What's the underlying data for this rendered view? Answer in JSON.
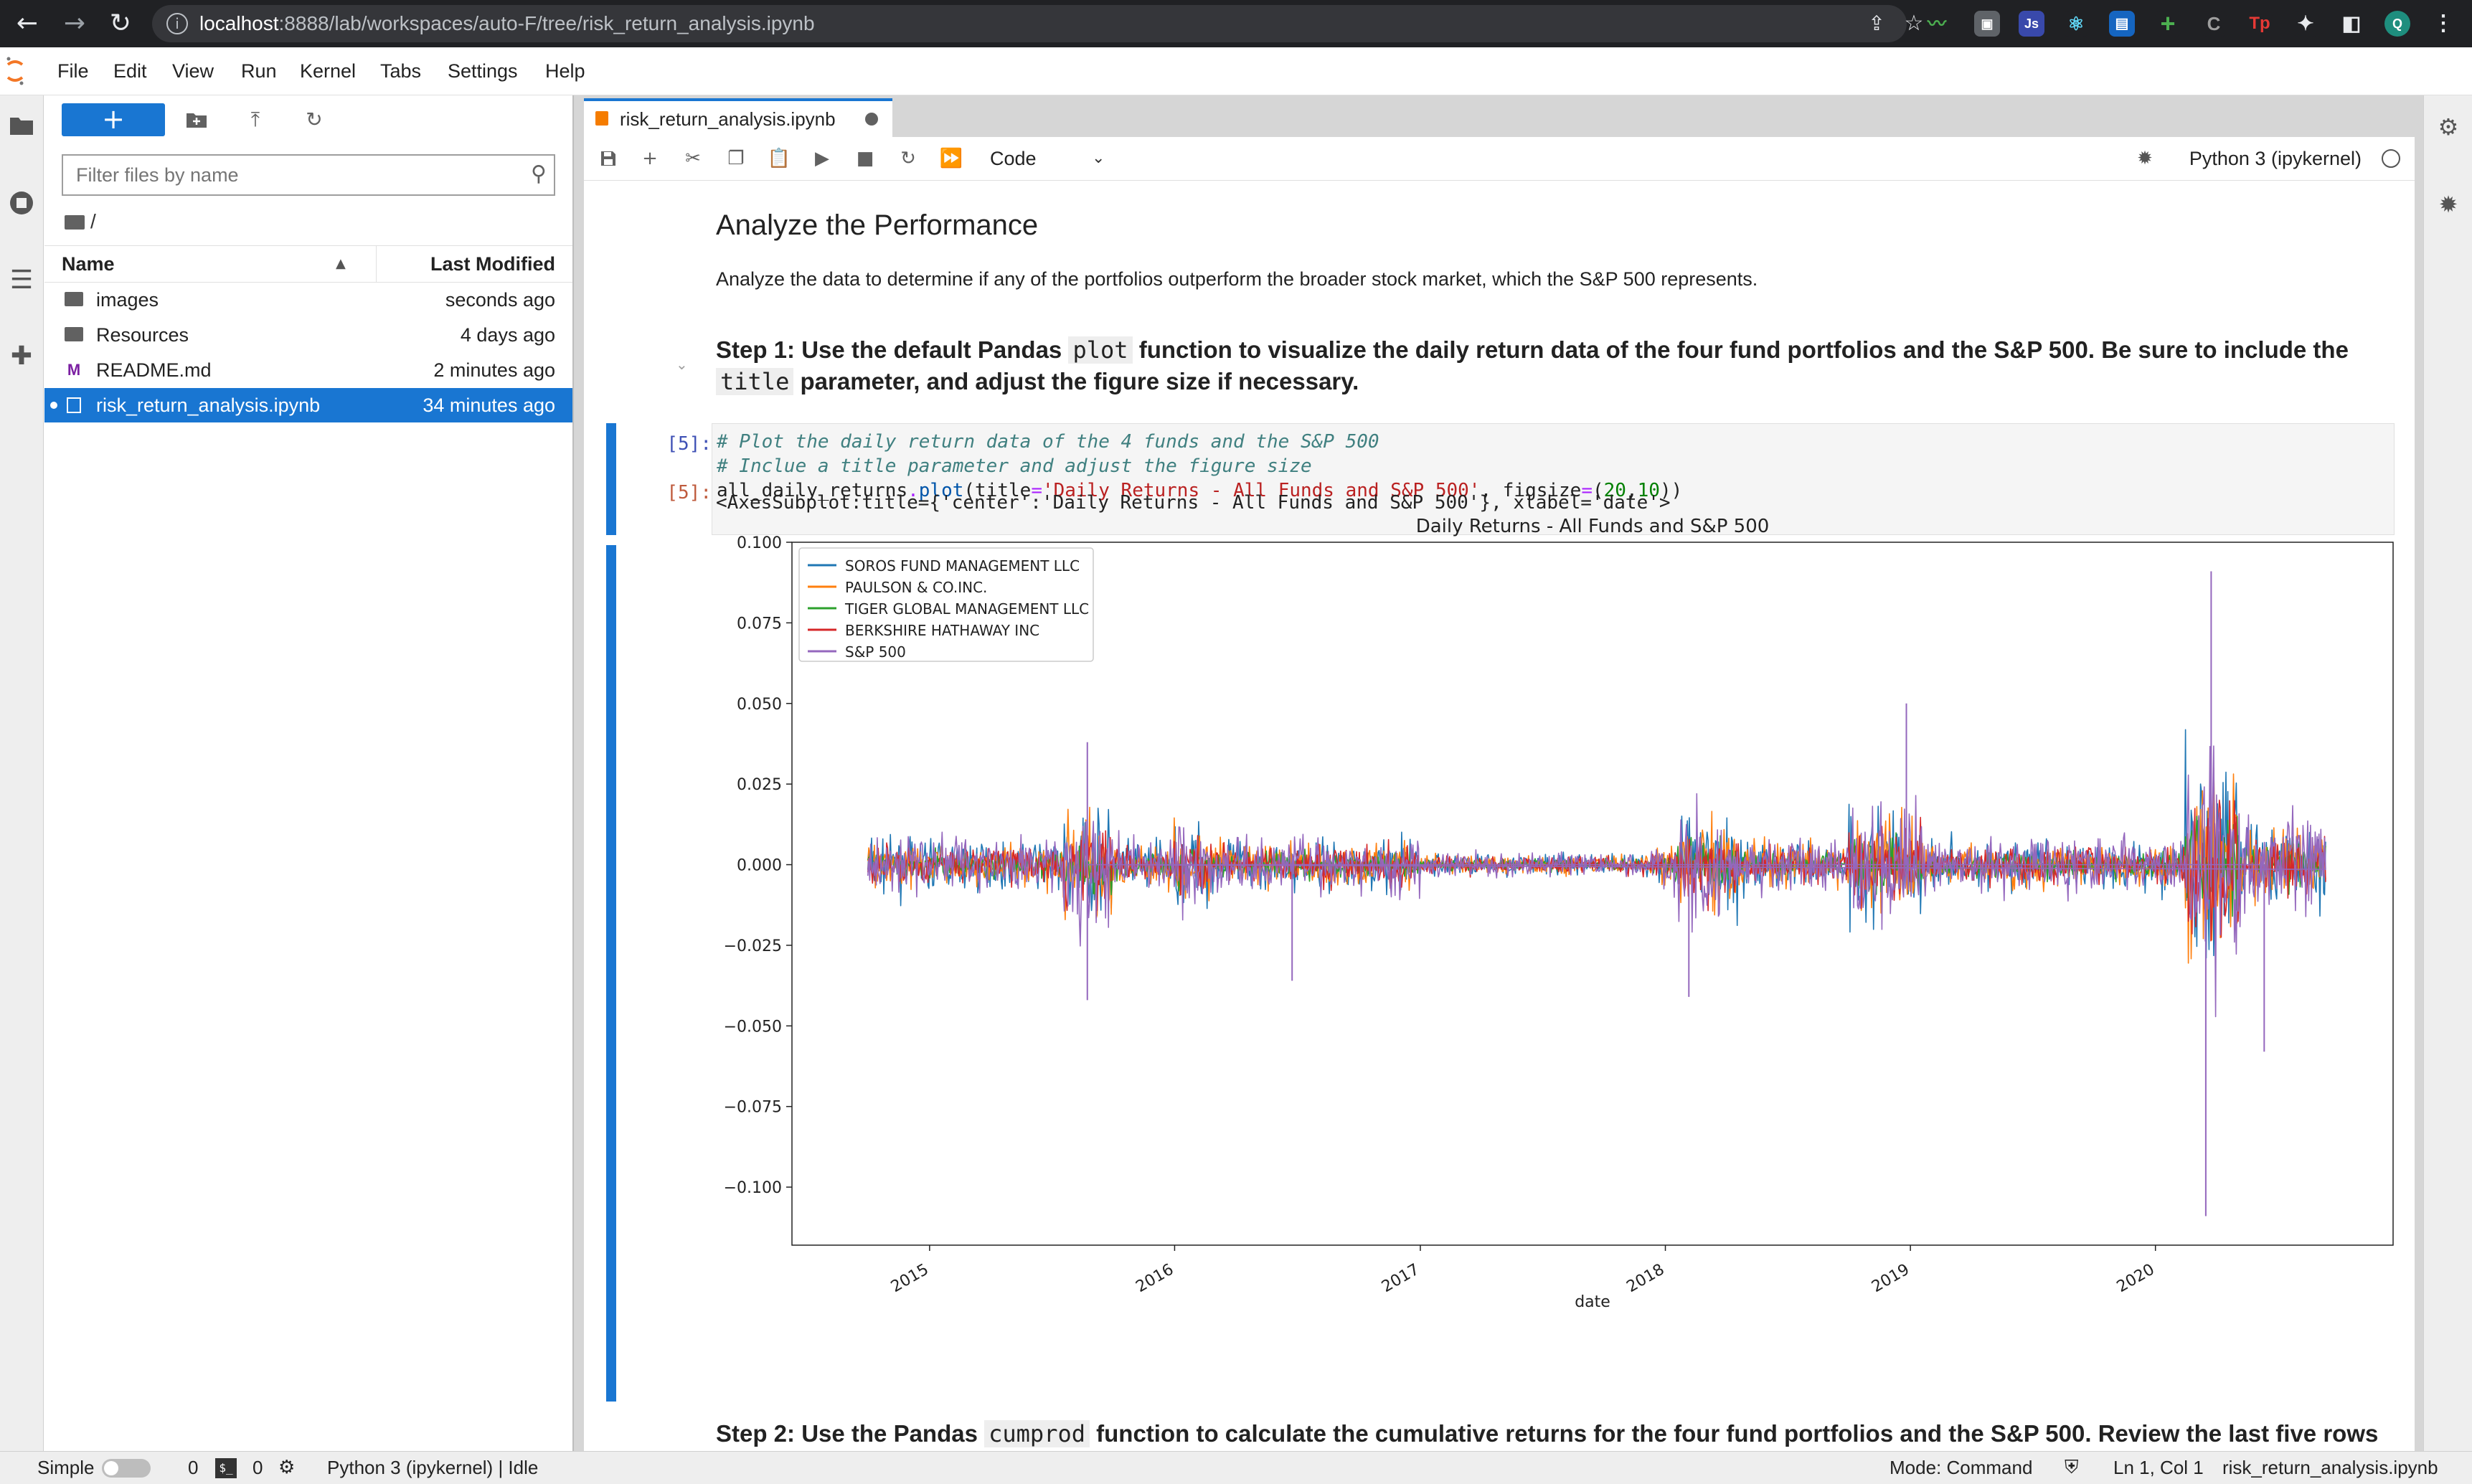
{
  "browser": {
    "url_host": "localhost",
    "url_path": ":8888/lab/workspaces/auto-F/tree/risk_return_analysis.ipynb",
    "ext_js": "Js",
    "ext_tp": "Tp",
    "profile_initial": "Q"
  },
  "menu": [
    "File",
    "Edit",
    "View",
    "Run",
    "Kernel",
    "Tabs",
    "Settings",
    "Help"
  ],
  "filebrowser": {
    "new_label": "+",
    "filter_placeholder": "Filter files by name",
    "breadcrumb": "/",
    "col_name": "Name",
    "col_modified": "Last Modified",
    "files": [
      {
        "name": "images",
        "modified": "seconds ago",
        "type": "folder"
      },
      {
        "name": "Resources",
        "modified": "4 days ago",
        "type": "folder"
      },
      {
        "name": "README.md",
        "modified": "2 minutes ago",
        "type": "markdown"
      },
      {
        "name": "risk_return_analysis.ipynb",
        "modified": "34 minutes ago",
        "type": "notebook",
        "selected": true
      }
    ]
  },
  "notebook": {
    "tab_label": "risk_return_analysis.ipynb",
    "cell_type": "Code",
    "kernel": "Python 3 (ipykernel)",
    "heading": "Analyze the Performance",
    "intro": "Analyze the data to determine if any of the portfolios outperform the broader stock market, which the S&P 500 represents.",
    "step1_a": "Step 1: Use the default Pandas ",
    "step1_code1": "plot",
    "step1_b": " function to visualize the daily return data of the four fund portfolios and the S&P 500. Be sure to include the ",
    "step1_code2": "title",
    "step1_c": " parameter, and adjust the figure size if necessary.",
    "prompt_in": "[5]:",
    "prompt_out": "[5]:",
    "code_line1": "# Plot the daily return data of the 4 funds and the S&P 500",
    "code_line2": "# Inclue a title parameter and adjust the figure size",
    "code_l3_a": "all_daily_returns",
    "code_l3_b": ".",
    "code_l3_c": "plot",
    "code_l3_d": "(title",
    "code_l3_e": "=",
    "code_l3_f": "'Daily Returns - All Funds and S&P 500'",
    "code_l3_g": ", figsize",
    "code_l3_h": "=",
    "code_l3_i": "(",
    "code_l3_j": "20",
    "code_l3_k": ",",
    "code_l3_l": "10",
    "code_l3_m": "))",
    "output_repr": "<AxesSubplot:title={'center':'Daily Returns - All Funds and S&P 500'}, xlabel='date'>",
    "step2_a": "Step 2: Use the Pandas ",
    "step2_code": "cumprod",
    "step2_b": " function to calculate the cumulative returns for the four fund portfolios and the S&P 500. Review the last five rows"
  },
  "chart_data": {
    "type": "line",
    "title": "Daily Returns - All Funds and S&P 500",
    "xlabel": "date",
    "ylabel": "",
    "x_range": [
      "2014-10-01",
      "2020-09-11"
    ],
    "ylim": [
      -0.118,
      0.1
    ],
    "yticks": [
      0.1,
      0.075,
      0.05,
      0.025,
      0.0,
      -0.025,
      -0.05,
      -0.075,
      -0.1
    ],
    "ytick_labels": [
      "0.100",
      "0.075",
      "0.050",
      "0.025",
      "0.000",
      "−0.025",
      "−0.050",
      "−0.075",
      "−0.100"
    ],
    "xticks": [
      "2015",
      "2016",
      "2017",
      "2018",
      "2019",
      "2020"
    ],
    "legend_position": "upper-left",
    "grid": false,
    "series": [
      {
        "name": "SOROS FUND MANAGEMENT LLC",
        "color": "#1f77b4",
        "approx_range": [
          -0.04,
          0.05
        ]
      },
      {
        "name": "PAULSON & CO.INC.",
        "color": "#ff7f0e",
        "approx_range": [
          -0.035,
          0.03
        ]
      },
      {
        "name": "TIGER GLOBAL MANAGEMENT LLC",
        "color": "#2ca02c",
        "approx_range": [
          -0.02,
          0.015
        ]
      },
      {
        "name": "BERKSHIRE HATHAWAY INC",
        "color": "#d62728",
        "approx_range": [
          -0.025,
          0.02
        ]
      },
      {
        "name": "S&P 500",
        "color": "#9467bd",
        "approx_range": [
          -0.11,
          0.09
        ]
      }
    ],
    "notable_points": [
      {
        "series": "S&P 500",
        "date": "2015-08-24",
        "value": 0.038
      },
      {
        "series": "S&P 500",
        "date": "2015-08-24",
        "value": -0.042
      },
      {
        "series": "S&P 500",
        "date": "2016-06-24",
        "value": -0.036
      },
      {
        "series": "S&P 500",
        "date": "2018-02-05",
        "value": -0.041
      },
      {
        "series": "S&P 500",
        "date": "2018-12-26",
        "value": 0.05
      },
      {
        "series": "S&P 500",
        "date": "2020-03-16",
        "value": -0.109
      },
      {
        "series": "S&P 500",
        "date": "2020-03-24",
        "value": 0.091
      },
      {
        "series": "S&P 500",
        "date": "2020-06-11",
        "value": -0.058
      }
    ]
  },
  "statusbar": {
    "mode_simple": "Simple",
    "count_terminals": "0",
    "count_kernels": "0",
    "kernel_status": "Python 3 (ipykernel) | Idle",
    "mode": "Mode: Command",
    "cursor": "Ln 1, Col 1",
    "filename": "risk_return_analysis.ipynb"
  }
}
